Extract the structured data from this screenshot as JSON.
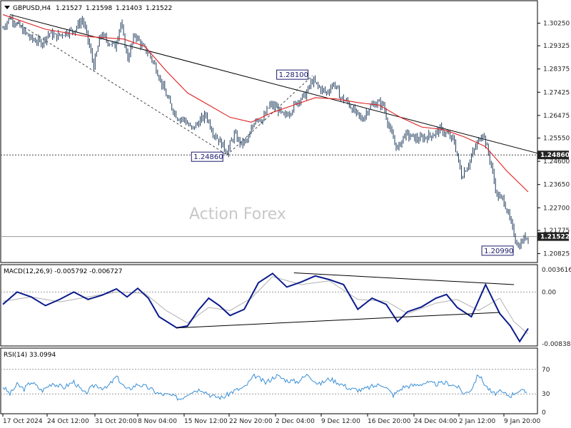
{
  "header": {
    "symbol": "GBPUSD,H4",
    "open": "1.21527",
    "high": "1.21598",
    "low": "1.21403",
    "close": "1.21522"
  },
  "watermark": "Action Forex",
  "price_axis": [
    "1.30250",
    "1.29325",
    "1.28375",
    "1.27425",
    "1.26475",
    "1.25550",
    "1.24600",
    "1.23650",
    "1.22700",
    "1.21775",
    "1.20825"
  ],
  "current_price": "1.21522",
  "support_level": "1.24860",
  "annotations": {
    "swing_high": "1.28100",
    "swing_low_nov": "1.24860",
    "recent_low": "1.20990"
  },
  "macd": {
    "title": "MACD(12,26,9) -0.005792 -0.006727",
    "axis": [
      "0.003616",
      "0.00",
      "-0.00838"
    ]
  },
  "rsi": {
    "title": "RSI(14) 33.0994",
    "axis": [
      "70",
      "30",
      "0"
    ]
  },
  "time_axis": [
    "17 Oct 2024",
    "24 Oct 12:00",
    "31 Oct 20:00",
    "8 Nov 04:00",
    "15 Nov 12:00",
    "22 Nov 20:00",
    "2 Dec 04:00",
    "9 Dec 12:00",
    "16 Dec 20:00",
    "24 Dec 04:00",
    "2 Jan 12:00",
    "9 Jan 20:00"
  ],
  "colors": {
    "candle": "#1f3b5c",
    "ma": "#e02020",
    "trend": "#000000",
    "macd": "#0a1a8c",
    "signal": "#b0b0b0",
    "rsi": "#3a8fd6",
    "level": "#444444"
  },
  "chart_data": {
    "type": "line",
    "title": "GBPUSD,H4",
    "xlabel": "",
    "ylabel": "",
    "ylim": [
      1.2052,
      1.3105
    ],
    "x": [
      "17 Oct 2024",
      "24 Oct 12:00",
      "31 Oct 20:00",
      "8 Nov 04:00",
      "15 Nov 12:00",
      "22 Nov 20:00",
      "2 Dec 04:00",
      "9 Dec 12:00",
      "16 Dec 20:00",
      "24 Dec 04:00",
      "2 Jan 12:00",
      "9 Jan 20:00"
    ],
    "series": [
      {
        "values": [
          1.303,
          1.2965,
          1.299,
          1.293,
          1.262,
          1.253,
          1.27,
          1.276,
          1.265,
          1.257,
          1.254,
          1.223
        ]
      }
    ],
    "close_path": [
      [
        0,
        1.3005
      ],
      [
        10,
        1.305
      ],
      [
        25,
        1.3005
      ],
      [
        40,
        1.296
      ],
      [
        55,
        1.2945
      ],
      [
        65,
        1.2985
      ],
      [
        75,
        1.297
      ],
      [
        90,
        1.299
      ],
      [
        100,
        1.2995
      ],
      [
        112,
        1.304
      ],
      [
        118,
        1.298
      ],
      [
        128,
        1.285
      ],
      [
        138,
        1.298
      ],
      [
        148,
        1.295
      ],
      [
        158,
        1.293
      ],
      [
        166,
        1.3025
      ],
      [
        176,
        1.288
      ],
      [
        186,
        1.298
      ],
      [
        196,
        1.293
      ],
      [
        206,
        1.29
      ],
      [
        216,
        1.284
      ],
      [
        226,
        1.276
      ],
      [
        236,
        1.269
      ],
      [
        246,
        1.264
      ],
      [
        256,
        1.263
      ],
      [
        266,
        1.259
      ],
      [
        276,
        1.262
      ],
      [
        286,
        1.265
      ],
      [
        296,
        1.258
      ],
      [
        306,
        1.254
      ],
      [
        316,
        1.25
      ],
      [
        326,
        1.257
      ],
      [
        336,
        1.253
      ],
      [
        346,
        1.255
      ],
      [
        356,
        1.264
      ],
      [
        366,
        1.263
      ],
      [
        376,
        1.269
      ],
      [
        386,
        1.268
      ],
      [
        396,
        1.264
      ],
      [
        406,
        1.267
      ],
      [
        416,
        1.271
      ],
      [
        426,
        1.273
      ],
      [
        436,
        1.279
      ],
      [
        446,
        1.276
      ],
      [
        456,
        1.274
      ],
      [
        466,
        1.278
      ],
      [
        476,
        1.272
      ],
      [
        486,
        1.27
      ],
      [
        496,
        1.266
      ],
      [
        506,
        1.263
      ],
      [
        516,
        1.268
      ],
      [
        526,
        1.27
      ],
      [
        536,
        1.269
      ],
      [
        546,
        1.258
      ],
      [
        556,
        1.251
      ],
      [
        566,
        1.257
      ],
      [
        576,
        1.256
      ],
      [
        586,
        1.255
      ],
      [
        596,
        1.256
      ],
      [
        606,
        1.257
      ],
      [
        616,
        1.259
      ],
      [
        626,
        1.257
      ],
      [
        636,
        1.254
      ],
      [
        646,
        1.24
      ],
      [
        656,
        1.245
      ],
      [
        666,
        1.252
      ],
      [
        676,
        1.258
      ],
      [
        686,
        1.247
      ],
      [
        696,
        1.232
      ],
      [
        706,
        1.23
      ],
      [
        716,
        1.22
      ],
      [
        726,
        1.211
      ],
      [
        736,
        1.2152
      ]
    ],
    "ma_path": [
      [
        0,
        1.306
      ],
      [
        60,
        1.3
      ],
      [
        120,
        1.297
      ],
      [
        170,
        1.296
      ],
      [
        200,
        1.293
      ],
      [
        230,
        1.283
      ],
      [
        260,
        1.274
      ],
      [
        290,
        1.269
      ],
      [
        320,
        1.264
      ],
      [
        350,
        1.262
      ],
      [
        380,
        1.266
      ],
      [
        410,
        1.269
      ],
      [
        440,
        1.272
      ],
      [
        470,
        1.2715
      ],
      [
        500,
        1.27
      ],
      [
        530,
        1.269
      ],
      [
        560,
        1.264
      ],
      [
        590,
        1.26
      ],
      [
        620,
        1.259
      ],
      [
        650,
        1.256
      ],
      [
        680,
        1.252
      ],
      [
        710,
        1.242
      ],
      [
        740,
        1.2335
      ]
    ],
    "levels": {
      "support": 1.2486,
      "current": 1.21522,
      "high": 1.281,
      "low": 1.2099
    },
    "macd_path": [
      [
        0,
        -0.002
      ],
      [
        20,
        0.0
      ],
      [
        40,
        -0.0008
      ],
      [
        60,
        -0.0022
      ],
      [
        80,
        -0.0012
      ],
      [
        100,
        0.0
      ],
      [
        120,
        -0.0012
      ],
      [
        140,
        -0.0005
      ],
      [
        160,
        0.0005
      ],
      [
        175,
        -0.0008
      ],
      [
        190,
        0.0006
      ],
      [
        205,
        -0.001
      ],
      [
        220,
        -0.004
      ],
      [
        245,
        -0.0058
      ],
      [
        260,
        -0.0055
      ],
      [
        275,
        -0.003
      ],
      [
        290,
        -0.001
      ],
      [
        305,
        -0.0022
      ],
      [
        320,
        -0.0038
      ],
      [
        340,
        -0.0028
      ],
      [
        360,
        0.0015
      ],
      [
        380,
        0.003
      ],
      [
        400,
        0.0008
      ],
      [
        420,
        0.0016
      ],
      [
        440,
        0.0026
      ],
      [
        460,
        0.002
      ],
      [
        480,
        0.0012
      ],
      [
        500,
        -0.0028
      ],
      [
        520,
        -0.001
      ],
      [
        540,
        -0.002
      ],
      [
        556,
        -0.0048
      ],
      [
        570,
        -0.0032
      ],
      [
        590,
        -0.0024
      ],
      [
        610,
        -0.001
      ],
      [
        625,
        -0.0004
      ],
      [
        640,
        -0.0025
      ],
      [
        660,
        -0.004
      ],
      [
        680,
        0.0012
      ],
      [
        700,
        -0.0035
      ],
      [
        715,
        -0.0055
      ],
      [
        728,
        -0.008
      ],
      [
        740,
        -0.0059
      ]
    ],
    "signal_path": [
      [
        0,
        -0.0015
      ],
      [
        40,
        -0.0008
      ],
      [
        80,
        -0.0016
      ],
      [
        120,
        -0.0008
      ],
      [
        160,
        0.0
      ],
      [
        200,
        -0.0002
      ],
      [
        230,
        -0.003
      ],
      [
        260,
        -0.005
      ],
      [
        290,
        -0.0025
      ],
      [
        320,
        -0.003
      ],
      [
        350,
        -0.001
      ],
      [
        380,
        0.0025
      ],
      [
        420,
        0.0012
      ],
      [
        460,
        0.0018
      ],
      [
        500,
        -0.0012
      ],
      [
        540,
        -0.0015
      ],
      [
        570,
        -0.0035
      ],
      [
        610,
        -0.0018
      ],
      [
        640,
        -0.0012
      ],
      [
        670,
        -0.003
      ],
      [
        700,
        -0.001
      ],
      [
        720,
        -0.0048
      ],
      [
        740,
        -0.0068
      ]
    ],
    "rsi_path": [
      [
        0,
        42
      ],
      [
        10,
        30
      ],
      [
        20,
        45
      ],
      [
        30,
        38
      ],
      [
        40,
        50
      ],
      [
        55,
        35
      ],
      [
        70,
        48
      ],
      [
        85,
        40
      ],
      [
        100,
        50
      ],
      [
        115,
        30
      ],
      [
        130,
        45
      ],
      [
        145,
        38
      ],
      [
        160,
        58
      ],
      [
        175,
        36
      ],
      [
        190,
        46
      ],
      [
        205,
        40
      ],
      [
        220,
        30
      ],
      [
        235,
        28
      ],
      [
        250,
        22
      ],
      [
        265,
        34
      ],
      [
        280,
        38
      ],
      [
        295,
        26
      ],
      [
        310,
        24
      ],
      [
        325,
        35
      ],
      [
        340,
        40
      ],
      [
        355,
        60
      ],
      [
        370,
        48
      ],
      [
        385,
        60
      ],
      [
        400,
        52
      ],
      [
        415,
        50
      ],
      [
        430,
        62
      ],
      [
        445,
        45
      ],
      [
        460,
        55
      ],
      [
        475,
        47
      ],
      [
        490,
        38
      ],
      [
        505,
        36
      ],
      [
        520,
        42
      ],
      [
        535,
        46
      ],
      [
        550,
        28
      ],
      [
        565,
        42
      ],
      [
        580,
        44
      ],
      [
        595,
        48
      ],
      [
        610,
        46
      ],
      [
        625,
        48
      ],
      [
        640,
        42
      ],
      [
        650,
        30
      ],
      [
        660,
        38
      ],
      [
        670,
        62
      ],
      [
        680,
        44
      ],
      [
        690,
        30
      ],
      [
        700,
        33
      ],
      [
        715,
        27
      ],
      [
        725,
        35
      ],
      [
        738,
        33
      ]
    ]
  }
}
